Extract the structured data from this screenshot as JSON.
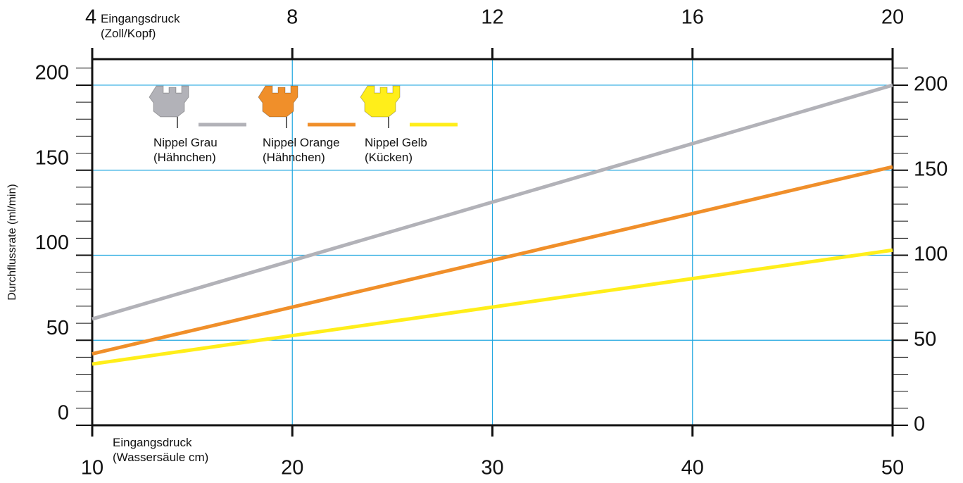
{
  "chart_data": {
    "type": "line",
    "y_label": "Durchflussrate (ml/min)",
    "x_label": "Eingangsdruck\n(Wassersäule cm)",
    "x2_label": "Eingangsdruck\n(Zoll/Kopf)",
    "x": [
      10,
      50
    ],
    "xlim": [
      10,
      50
    ],
    "xticks": [
      10,
      20,
      30,
      40,
      50
    ],
    "x2lim": [
      4,
      20
    ],
    "x2ticks": [
      4,
      8,
      12,
      16,
      20
    ],
    "ylim": [
      0,
      215.3
    ],
    "yticks": [
      0,
      50,
      100,
      150,
      200
    ],
    "yminorticks": [
      10,
      20,
      30,
      40,
      60,
      70,
      80,
      90,
      110,
      120,
      130,
      140,
      160,
      170,
      180,
      190,
      210
    ],
    "grid": true,
    "grid_color": "#1fa6e0",
    "series": [
      {
        "name": "Nippel Grau\n(Hähnchen)",
        "color": "#b2b2b8",
        "values": [
          62.5,
          200
        ]
      },
      {
        "name": "Nippel Orange\n(Hähnchen)",
        "color": "#f08f2a",
        "values": [
          42,
          152
        ]
      },
      {
        "name": "Nippel Gelb\n(Kücken)",
        "color": "#ffee1a",
        "values": [
          36,
          103
        ]
      }
    ]
  }
}
